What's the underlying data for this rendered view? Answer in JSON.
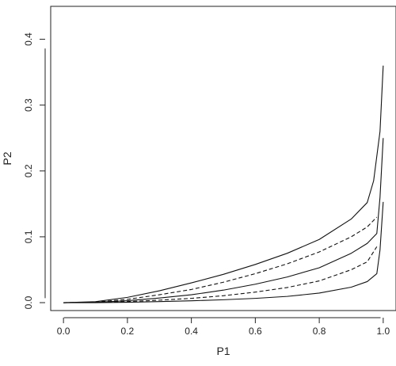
{
  "chart_data": {
    "type": "line",
    "title": "",
    "xlabel": "P1",
    "ylabel": "P2",
    "xlim": [
      -0.04,
      1.04
    ],
    "ylim": [
      -0.012,
      0.45
    ],
    "xticks": [
      "0.0",
      "0.2",
      "0.4",
      "0.6",
      "0.8",
      "1.0"
    ],
    "yticks": [
      "0.0",
      "0.1",
      "0.2",
      "0.3",
      "0.4"
    ],
    "grid": false,
    "legend": "none",
    "series": [
      {
        "style": "solid",
        "points": [
          [
            0.0,
            0.0
          ],
          [
            0.1,
            0.0
          ],
          [
            0.2,
            0.0006
          ],
          [
            0.3,
            0.0016
          ],
          [
            0.4,
            0.0028
          ],
          [
            0.5,
            0.0044
          ],
          [
            0.6,
            0.0065
          ],
          [
            0.7,
            0.0095
          ],
          [
            0.8,
            0.0145
          ],
          [
            0.9,
            0.0235
          ],
          [
            0.95,
            0.032
          ],
          [
            0.98,
            0.044
          ],
          [
            0.99,
            0.08
          ],
          [
            1.0,
            0.153
          ]
        ]
      },
      {
        "style": "dashed",
        "points": [
          [
            0.0,
            0.0
          ],
          [
            0.1,
            0.0003
          ],
          [
            0.2,
            0.0016
          ],
          [
            0.3,
            0.0038
          ],
          [
            0.4,
            0.0065
          ],
          [
            0.5,
            0.0105
          ],
          [
            0.6,
            0.016
          ],
          [
            0.7,
            0.023
          ],
          [
            0.8,
            0.033
          ],
          [
            0.9,
            0.05
          ],
          [
            0.95,
            0.062
          ],
          [
            0.98,
            0.085
          ]
        ]
      },
      {
        "style": "solid",
        "points": [
          [
            0.0,
            0.0
          ],
          [
            0.1,
            0.0005
          ],
          [
            0.2,
            0.003
          ],
          [
            0.3,
            0.007
          ],
          [
            0.4,
            0.012
          ],
          [
            0.5,
            0.019
          ],
          [
            0.6,
            0.028
          ],
          [
            0.7,
            0.039
          ],
          [
            0.8,
            0.053
          ],
          [
            0.9,
            0.075
          ],
          [
            0.95,
            0.09
          ],
          [
            0.98,
            0.105
          ],
          [
            0.99,
            0.16
          ],
          [
            1.0,
            0.25
          ]
        ]
      },
      {
        "style": "dashed",
        "points": [
          [
            0.0,
            0.0
          ],
          [
            0.1,
            0.0008
          ],
          [
            0.2,
            0.005
          ],
          [
            0.3,
            0.012
          ],
          [
            0.4,
            0.02
          ],
          [
            0.5,
            0.031
          ],
          [
            0.6,
            0.044
          ],
          [
            0.7,
            0.059
          ],
          [
            0.8,
            0.077
          ],
          [
            0.9,
            0.1
          ],
          [
            0.95,
            0.115
          ],
          [
            0.98,
            0.13
          ]
        ]
      },
      {
        "style": "solid",
        "points": [
          [
            0.0,
            0.0
          ],
          [
            0.1,
            0.0015
          ],
          [
            0.2,
            0.008
          ],
          [
            0.3,
            0.018
          ],
          [
            0.4,
            0.03
          ],
          [
            0.5,
            0.043
          ],
          [
            0.6,
            0.058
          ],
          [
            0.7,
            0.075
          ],
          [
            0.8,
            0.096
          ],
          [
            0.9,
            0.127
          ],
          [
            0.95,
            0.152
          ],
          [
            0.97,
            0.185
          ],
          [
            0.99,
            0.26
          ],
          [
            1.0,
            0.36
          ]
        ]
      }
    ]
  }
}
